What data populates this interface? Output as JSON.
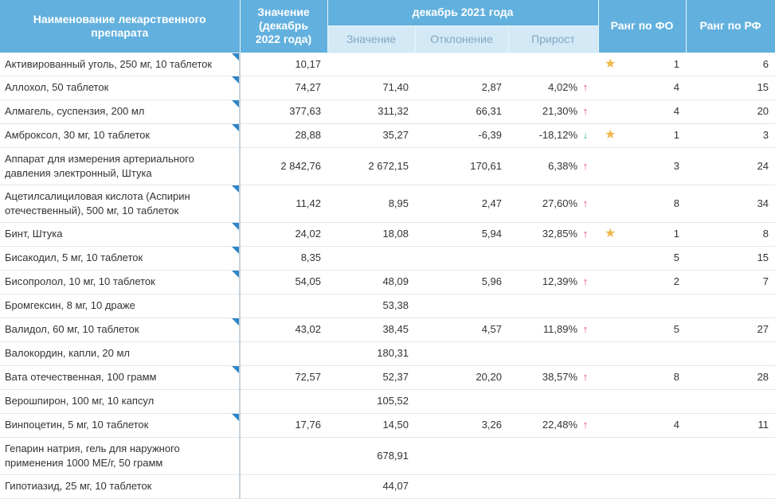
{
  "header": {
    "name": "Наименование лекарственного препарата",
    "value": "Значение (декабрь 2022 года)",
    "dec2021": "декабрь 2021 года",
    "dec_value": "Значение",
    "dec_deviation": "Отклонение",
    "dec_growth": "Прирост",
    "rank_fo": "Ранг по ФО",
    "rank_rf": "Ранг по РФ"
  },
  "colors": {
    "header_bg": "#62b0de",
    "subheader_bg": "#d4e9f6",
    "up": "#e8456a",
    "down": "#2fb08a",
    "star": "#f0b64a",
    "corner": "#2e86c7"
  },
  "rows": [
    {
      "name": "Активированный уголь, 250 мг, 10 таблеток",
      "value": "10,17",
      "prev": "",
      "dev": "",
      "growth": "",
      "trend": "",
      "star": true,
      "rank_fo": "1",
      "rank_rf": "6",
      "corner": true
    },
    {
      "name": "Аллохол, 50 таблеток",
      "value": "74,27",
      "prev": "71,40",
      "dev": "2,87",
      "growth": "4,02%",
      "trend": "up",
      "star": false,
      "rank_fo": "4",
      "rank_rf": "15",
      "corner": true
    },
    {
      "name": "Алмагель, суспензия, 200 мл",
      "value": "377,63",
      "prev": "311,32",
      "dev": "66,31",
      "growth": "21,30%",
      "trend": "up",
      "star": false,
      "rank_fo": "4",
      "rank_rf": "20",
      "corner": true
    },
    {
      "name": "Амброксол, 30 мг, 10 таблеток",
      "value": "28,88",
      "prev": "35,27",
      "dev": "-6,39",
      "growth": "-18,12%",
      "trend": "down",
      "star": true,
      "rank_fo": "1",
      "rank_rf": "3",
      "corner": true
    },
    {
      "name": "Аппарат для измерения артериального давления электронный, Штука",
      "value": "2 842,76",
      "prev": "2 672,15",
      "dev": "170,61",
      "growth": "6,38%",
      "trend": "up",
      "star": false,
      "rank_fo": "3",
      "rank_rf": "24",
      "corner": false
    },
    {
      "name": "Ацетилсалициловая кислота (Аспирин отечественный), 500 мг, 10 таблеток",
      "value": "11,42",
      "prev": "8,95",
      "dev": "2,47",
      "growth": "27,60%",
      "trend": "up",
      "star": false,
      "rank_fo": "8",
      "rank_rf": "34",
      "corner": true
    },
    {
      "name": "Бинт, Штука",
      "value": "24,02",
      "prev": "18,08",
      "dev": "5,94",
      "growth": "32,85%",
      "trend": "up",
      "star": true,
      "rank_fo": "1",
      "rank_rf": "8",
      "corner": true
    },
    {
      "name": "Бисакодил, 5 мг, 10 таблеток",
      "value": "8,35",
      "prev": "",
      "dev": "",
      "growth": "",
      "trend": "",
      "star": false,
      "rank_fo": "5",
      "rank_rf": "15",
      "corner": true
    },
    {
      "name": "Бисопролол, 10 мг, 10 таблеток",
      "value": "54,05",
      "prev": "48,09",
      "dev": "5,96",
      "growth": "12,39%",
      "trend": "up",
      "star": false,
      "rank_fo": "2",
      "rank_rf": "7",
      "corner": true
    },
    {
      "name": "Бромгексин, 8 мг, 10 драже",
      "value": "",
      "prev": "53,38",
      "dev": "",
      "growth": "",
      "trend": "",
      "star": false,
      "rank_fo": "",
      "rank_rf": "",
      "corner": false
    },
    {
      "name": "Валидол, 60 мг, 10 таблеток",
      "value": "43,02",
      "prev": "38,45",
      "dev": "4,57",
      "growth": "11,89%",
      "trend": "up",
      "star": false,
      "rank_fo": "5",
      "rank_rf": "27",
      "corner": true
    },
    {
      "name": "Валокордин, капли, 20 мл",
      "value": "",
      "prev": "180,31",
      "dev": "",
      "growth": "",
      "trend": "",
      "star": false,
      "rank_fo": "",
      "rank_rf": "",
      "corner": false
    },
    {
      "name": "Вата отечественная, 100 грамм",
      "value": "72,57",
      "prev": "52,37",
      "dev": "20,20",
      "growth": "38,57%",
      "trend": "up",
      "star": false,
      "rank_fo": "8",
      "rank_rf": "28",
      "corner": true
    },
    {
      "name": "Верошпирон, 100 мг, 10 капсул",
      "value": "",
      "prev": "105,52",
      "dev": "",
      "growth": "",
      "trend": "",
      "star": false,
      "rank_fo": "",
      "rank_rf": "",
      "corner": false
    },
    {
      "name": "Винпоцетин, 5 мг, 10 таблеток",
      "value": "17,76",
      "prev": "14,50",
      "dev": "3,26",
      "growth": "22,48%",
      "trend": "up",
      "star": false,
      "rank_fo": "4",
      "rank_rf": "11",
      "corner": true
    },
    {
      "name": "Гепарин натрия, гель для наружного применения 1000 МЕ/г, 50 грамм",
      "value": "",
      "prev": "678,91",
      "dev": "",
      "growth": "",
      "trend": "",
      "star": false,
      "rank_fo": "",
      "rank_rf": "",
      "corner": false
    },
    {
      "name": "Гипотиазид, 25 мг, 10 таблеток",
      "value": "",
      "prev": "44,07",
      "dev": "",
      "growth": "",
      "trend": "",
      "star": false,
      "rank_fo": "",
      "rank_rf": "",
      "corner": false
    }
  ]
}
